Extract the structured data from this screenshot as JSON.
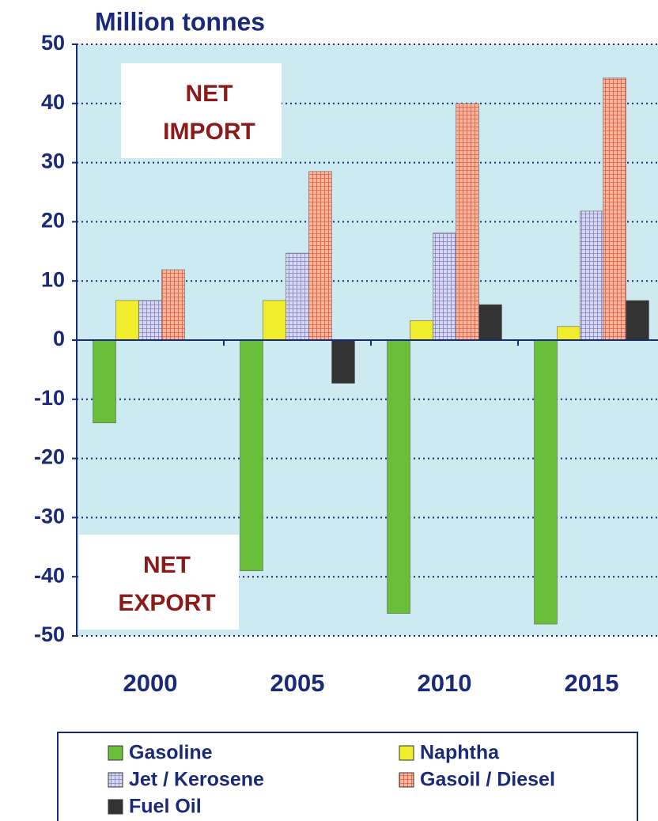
{
  "chart_data": {
    "type": "bar",
    "title": "Million tonnes",
    "categories": [
      "2000",
      "2005",
      "2010",
      "2015"
    ],
    "series": [
      {
        "name": "Gasoline",
        "color": "#6abf3a",
        "hatch": false,
        "values": [
          -14,
          -39,
          -46.2,
          -48
        ]
      },
      {
        "name": "Naphtha",
        "color": "#f0ee2c",
        "hatch": false,
        "values": [
          6.7,
          6.7,
          3.3,
          2.3
        ]
      },
      {
        "name": "Jet / Kerosene",
        "color": "#d8d8f2",
        "hatch": true,
        "values": [
          6.7,
          14.7,
          18.1,
          21.8
        ]
      },
      {
        "name": "Gasoil / Diesel",
        "color": "#f8b6a0",
        "hatch": true,
        "values": [
          11.9,
          28.5,
          40,
          44.3
        ]
      },
      {
        "name": "Fuel Oil",
        "color": "#333333",
        "hatch": false,
        "values": [
          null,
          -7.3,
          6.0,
          6.7
        ]
      }
    ],
    "ylim": [
      -50,
      50
    ],
    "yticks": [
      -50,
      -40,
      -30,
      -20,
      -10,
      0,
      10,
      20,
      30,
      40,
      50
    ],
    "grid": true,
    "annotations": [
      {
        "lines": [
          "NET",
          "IMPORT"
        ]
      },
      {
        "lines": [
          "NET",
          "EXPORT"
        ]
      }
    ]
  }
}
